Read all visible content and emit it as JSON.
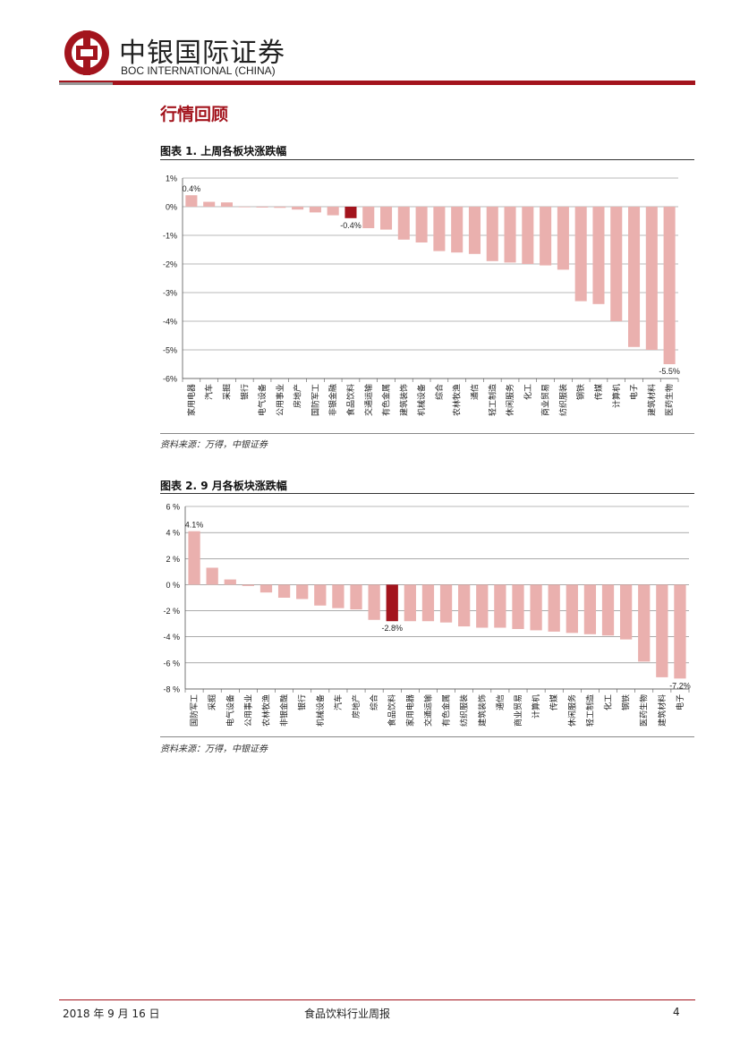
{
  "header": {
    "brand_cn": "中银国际证券",
    "brand_en": "BOC INTERNATIONAL (CHINA)",
    "logo_icon": "boc-logo-icon",
    "brand_color": "#a3141d"
  },
  "section_title": "行情回顾",
  "charts": {
    "c1_title": "图表 1. 上周各板块涨跌幅",
    "c1_source": "资料来源：万得，中银证券",
    "c2_title": "图表 2. 9 月各板块涨跌幅",
    "c2_source": "资料来源：万得，中银证券"
  },
  "chart_data": [
    {
      "type": "bar",
      "title": "图表 1. 上周各板块涨跌幅",
      "categories": [
        "家用电器",
        "汽车",
        "采掘",
        "银行",
        "电气设备",
        "公用事业",
        "房地产",
        "国防军工",
        "非银金融",
        "食品饮料",
        "交通运输",
        "有色金属",
        "建筑装饰",
        "机械设备",
        "综合",
        "农林牧渔",
        "通信",
        "轻工制造",
        "休闲服务",
        "化工",
        "商业贸易",
        "纺织服装",
        "钢铁",
        "传媒",
        "计算机",
        "电子",
        "建筑材料",
        "医药生物"
      ],
      "values": [
        0.4,
        0.17,
        0.15,
        -0.02,
        -0.03,
        -0.04,
        -0.1,
        -0.2,
        -0.3,
        -0.4,
        -0.75,
        -0.8,
        -1.15,
        -1.25,
        -1.55,
        -1.6,
        -1.65,
        -1.9,
        -1.95,
        -2.0,
        -2.05,
        -2.2,
        -3.3,
        -3.4,
        -4.0,
        -4.9,
        -5.0,
        -5.5
      ],
      "data_labels": {
        "0": "0.4%",
        "9": "-0.4%",
        "27": "-5.5%"
      },
      "highlight_index": 9,
      "ylim": [
        -6,
        1
      ],
      "yticks": [
        1,
        0,
        -1,
        -2,
        -3,
        -4,
        -5,
        -6
      ],
      "ytick_labels": [
        "1%",
        "0%",
        "-1%",
        "-2%",
        "-3%",
        "-4%",
        "-5%",
        "-6%"
      ],
      "bar_color": "#eab0ae",
      "highlight_color": "#a3141d",
      "grid": true,
      "xlabel": "",
      "ylabel": ""
    },
    {
      "type": "bar",
      "title": "图表 2. 9 月各板块涨跌幅",
      "categories": [
        "国防军工",
        "采掘",
        "电气设备",
        "公用事业",
        "农林牧渔",
        "非银金融",
        "银行",
        "机械设备",
        "汽车",
        "房地产",
        "综合",
        "食品饮料",
        "家用电器",
        "交通运输",
        "有色金属",
        "纺织服装",
        "建筑装饰",
        "通信",
        "商业贸易",
        "计算机",
        "传媒",
        "休闲服务",
        "轻工制造",
        "化工",
        "钢铁",
        "医药生物",
        "建筑材料",
        "电子"
      ],
      "values": [
        4.1,
        1.3,
        0.4,
        -0.1,
        -0.6,
        -1.0,
        -1.1,
        -1.6,
        -1.8,
        -1.9,
        -2.7,
        -2.8,
        -2.8,
        -2.8,
        -2.9,
        -3.2,
        -3.3,
        -3.3,
        -3.4,
        -3.5,
        -3.6,
        -3.7,
        -3.8,
        -3.9,
        -4.2,
        -5.9,
        -7.1,
        -7.2
      ],
      "data_labels": {
        "0": "4.1%",
        "11": "-2.8%",
        "27": "-7.2%"
      },
      "highlight_index": 11,
      "ylim": [
        -8,
        6
      ],
      "yticks": [
        6,
        4,
        2,
        0,
        -2,
        -4,
        -6,
        -8
      ],
      "ytick_labels": [
        "6 %",
        "4 %",
        "2 %",
        "0 %",
        "-2 %",
        "-4 %",
        "-6 %",
        "-8 %"
      ],
      "bar_color": "#eab0ae",
      "highlight_color": "#a3141d",
      "grid": true,
      "xlabel": "",
      "ylabel": ""
    }
  ],
  "footer": {
    "date": "2018 年 9 月 16 日",
    "report_title": "食品饮料行业周报",
    "page": "4"
  }
}
